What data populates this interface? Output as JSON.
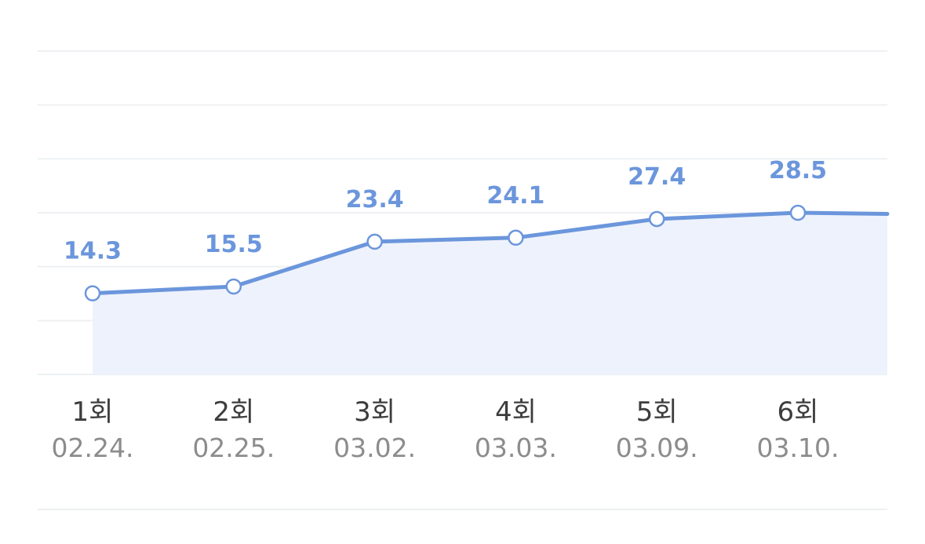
{
  "chart_data": {
    "type": "area",
    "categories": [
      "1회",
      "2회",
      "3회",
      "4회",
      "5회",
      "6회"
    ],
    "dates": [
      "02.24.",
      "02.25.",
      "03.02.",
      "03.03.",
      "03.09.",
      "03.10."
    ],
    "values": [
      14.3,
      15.5,
      23.4,
      24.1,
      27.4,
      28.5
    ],
    "value_labels": [
      "14.3",
      "15.5",
      "23.4",
      "24.1",
      "27.4",
      "28.5"
    ],
    "trailing_value": 28.3,
    "ylim": [
      0,
      57
    ],
    "grid": true,
    "grid_lines": 7,
    "line_color": "#6b96dc",
    "fill_color": "#eef2fc",
    "label_color": "#6b96dc",
    "category_color": "#3d3d3d",
    "date_color": "#8c8c8c",
    "grid_color": "#eef0f3"
  }
}
